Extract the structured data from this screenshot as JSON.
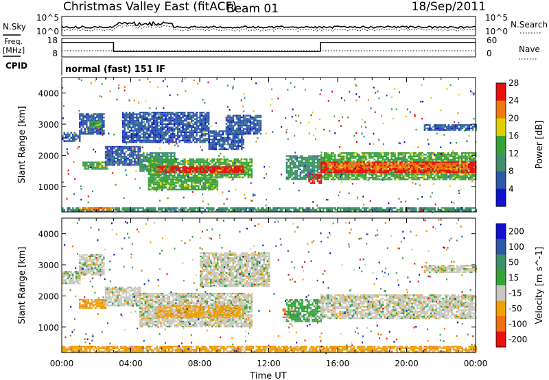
{
  "header": {
    "station": "Christmas Valley East (fitACF)",
    "beam": "Beam 01",
    "date": "18/Sep/2011"
  },
  "top_panels": {
    "nsky_label": "N.Sky",
    "nsky_ticks": [
      "10^5",
      "10^0"
    ],
    "nsearch_label": "N.Search",
    "nsearch_ticks": [
      "10^5",
      "10^0"
    ],
    "freq_label": "Freq.",
    "freq_unit": "[MHz]",
    "freq_ticks": [
      "18",
      "8"
    ],
    "nave_label": "Nave",
    "nave_ticks": [
      "60",
      "0"
    ],
    "cpid_label": "CPID",
    "cpid_text": "normal (fast) 151 IF"
  },
  "chart_data": [
    {
      "type": "heatmap",
      "name": "power",
      "ylabel": "Slant Range [km]",
      "ylim": [
        180,
        4500
      ],
      "yticks": [
        "1000",
        "2000",
        "3000",
        "4000"
      ],
      "colorbar_label": "Power [dB]",
      "colorbar_ticks": [
        "4",
        "8",
        "12",
        "16",
        "20",
        "24",
        "28"
      ],
      "colors": [
        "#1010d0",
        "#2e58a8",
        "#3f8f6a",
        "#36a33a",
        "#e0d000",
        "#f07a10",
        "#e81010"
      ],
      "regions": [
        {
          "t0": 0.0,
          "t1": 1.0,
          "r0": 2450,
          "r1": 2750,
          "level": 1
        },
        {
          "t0": 1.0,
          "t1": 2.4,
          "r0": 2700,
          "r1": 3350,
          "level": 1
        },
        {
          "t0": 1.6,
          "t1": 2.2,
          "r0": 2900,
          "r1": 3100,
          "level": 3
        },
        {
          "t0": 1.2,
          "t1": 2.6,
          "r0": 1550,
          "r1": 1800,
          "level": 3
        },
        {
          "t0": 2.5,
          "t1": 4.5,
          "r0": 1700,
          "r1": 2300,
          "level": 1
        },
        {
          "t0": 3.5,
          "t1": 8.5,
          "r0": 2400,
          "r1": 3400,
          "level": 1
        },
        {
          "t0": 4.5,
          "t1": 6.5,
          "r0": 1500,
          "r1": 2100,
          "level": 2
        },
        {
          "t0": 5.0,
          "t1": 11.0,
          "r0": 1300,
          "r1": 1900,
          "level": 3
        },
        {
          "t0": 5.5,
          "t1": 10.5,
          "r0": 1450,
          "r1": 1650,
          "level": 6
        },
        {
          "t0": 5.0,
          "t1": 9.0,
          "r0": 900,
          "r1": 1300,
          "level": 3
        },
        {
          "t0": 8.5,
          "t1": 10.5,
          "r0": 2200,
          "r1": 2800,
          "level": 1
        },
        {
          "t0": 9.5,
          "t1": 11.5,
          "r0": 2700,
          "r1": 3300,
          "level": 1
        },
        {
          "t0": 13.0,
          "t1": 15.0,
          "r0": 1250,
          "r1": 2000,
          "level": 2
        },
        {
          "t0": 14.3,
          "t1": 15.0,
          "r0": 1100,
          "r1": 1400,
          "level": 6
        },
        {
          "t0": 15.0,
          "t1": 24.0,
          "r0": 1250,
          "r1": 2100,
          "level": 3
        },
        {
          "t0": 15.0,
          "t1": 24.0,
          "r0": 1450,
          "r1": 1800,
          "level": 6
        },
        {
          "t0": 15.5,
          "t1": 23.5,
          "r0": 1550,
          "r1": 1750,
          "level": 5
        },
        {
          "t0": 21.0,
          "t1": 24.0,
          "r0": 2800,
          "r1": 3000,
          "level": 1
        },
        {
          "t0": 0.0,
          "t1": 24.0,
          "r0": 200,
          "r1": 330,
          "level": 2
        },
        {
          "t0": 1.0,
          "t1": 3.0,
          "r0": 250,
          "r1": 330,
          "level": 5
        }
      ]
    },
    {
      "type": "heatmap",
      "name": "velocity",
      "ylabel": "Slant Range [km]",
      "ylim": [
        180,
        4500
      ],
      "yticks": [
        "1000",
        "2000",
        "3000",
        "4000"
      ],
      "xlabel": "Time UT",
      "xticks": [
        "00:00",
        "04:00",
        "08:00",
        "12:00",
        "16:00",
        "20:00",
        "00:00"
      ],
      "colorbar_label": "Velocity [m s^-1]",
      "colorbar_ticks": [
        "200",
        "100",
        "50",
        "15",
        "-15",
        "-50",
        "-100",
        "-200"
      ],
      "colors": [
        "#1010d0",
        "#2e58a8",
        "#3f8f6a",
        "#36a33a",
        "#c8c8c0",
        "#f0a000",
        "#f07010",
        "#e81010"
      ],
      "regions": [
        {
          "t0": 0.0,
          "t1": 1.0,
          "r0": 2400,
          "r1": 2800,
          "level": 4
        },
        {
          "t0": 1.0,
          "t1": 2.4,
          "r0": 2700,
          "r1": 3350,
          "level": 4
        },
        {
          "t0": 1.0,
          "t1": 2.5,
          "r0": 1600,
          "r1": 1900,
          "level": 5
        },
        {
          "t0": 2.5,
          "t1": 4.5,
          "r0": 1700,
          "r1": 2300,
          "level": 4
        },
        {
          "t0": 4.5,
          "t1": 11.0,
          "r0": 1000,
          "r1": 2100,
          "level": 4
        },
        {
          "t0": 5.5,
          "t1": 10.5,
          "r0": 1300,
          "r1": 1700,
          "level": 5
        },
        {
          "t0": 8.0,
          "t1": 12.0,
          "r0": 2300,
          "r1": 3400,
          "level": 4
        },
        {
          "t0": 12.8,
          "t1": 13.4,
          "r0": 1300,
          "r1": 1600,
          "level": 6
        },
        {
          "t0": 13.0,
          "t1": 15.0,
          "r0": 1200,
          "r1": 1900,
          "level": 3
        },
        {
          "t0": 15.0,
          "t1": 24.0,
          "r0": 1300,
          "r1": 2050,
          "level": 4
        },
        {
          "t0": 0.0,
          "t1": 24.0,
          "r0": 200,
          "r1": 400,
          "level": 5
        },
        {
          "t0": 21.0,
          "t1": 24.0,
          "r0": 2750,
          "r1": 3000,
          "level": 4
        }
      ]
    }
  ]
}
